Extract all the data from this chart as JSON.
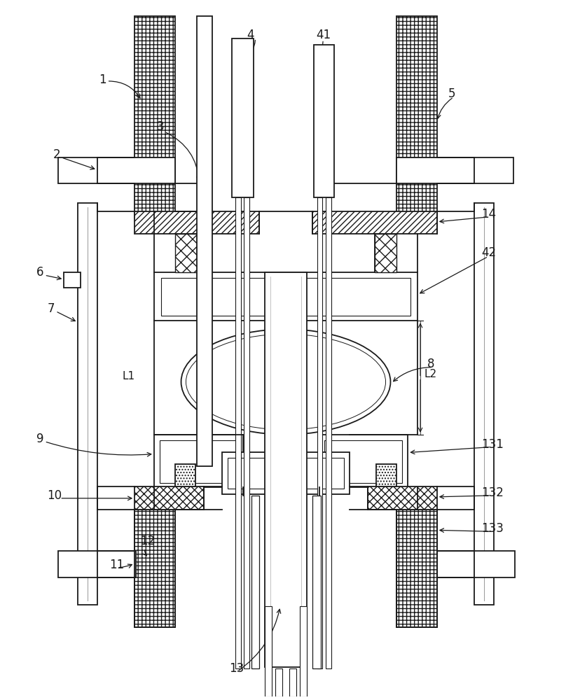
{
  "fig_width": 8.18,
  "fig_height": 10.0,
  "dpi": 100,
  "bg_color": "#ffffff",
  "line_color": "#1a1a1a"
}
